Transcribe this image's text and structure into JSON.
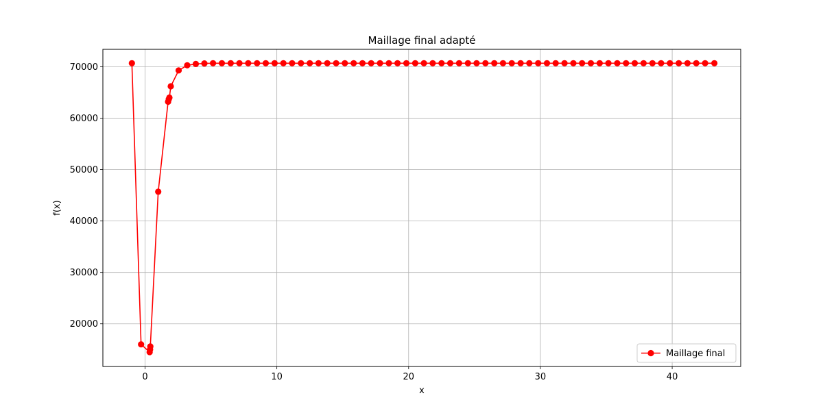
{
  "chart_data": {
    "type": "line",
    "title": "Maillage final adapté",
    "xlabel": "x",
    "ylabel": "f(x)",
    "xlim": [
      -3.2,
      45.2
    ],
    "ylim": [
      11700,
      73400
    ],
    "xticks": [
      0,
      10,
      20,
      30,
      40
    ],
    "yticks": [
      20000,
      30000,
      40000,
      50000,
      60000,
      70000
    ],
    "grid": true,
    "legend_position": "lower-right",
    "series": [
      {
        "name": "Maillage final",
        "color": "#ff0000",
        "marker": "circle",
        "points": [
          [
            -1.0,
            70700
          ],
          [
            -0.3,
            16000
          ],
          [
            0.35,
            14500
          ],
          [
            0.38,
            15000
          ],
          [
            0.4,
            15600
          ],
          [
            1.0,
            45700
          ],
          [
            1.75,
            63200
          ],
          [
            1.8,
            63700
          ],
          [
            1.85,
            64000
          ],
          [
            1.95,
            66200
          ],
          [
            2.55,
            69300
          ],
          [
            3.2,
            70300
          ],
          [
            3.85,
            70550
          ],
          [
            4.5,
            70650
          ],
          [
            5.16,
            70700
          ],
          [
            5.83,
            70700
          ],
          [
            6.5,
            70700
          ],
          [
            7.16,
            70700
          ],
          [
            7.83,
            70700
          ],
          [
            8.5,
            70700
          ],
          [
            9.16,
            70700
          ],
          [
            9.83,
            70700
          ],
          [
            10.5,
            70700
          ],
          [
            11.16,
            70700
          ],
          [
            11.83,
            70700
          ],
          [
            12.5,
            70700
          ],
          [
            13.16,
            70700
          ],
          [
            13.83,
            70700
          ],
          [
            14.5,
            70700
          ],
          [
            15.16,
            70700
          ],
          [
            15.83,
            70700
          ],
          [
            16.5,
            70700
          ],
          [
            17.16,
            70700
          ],
          [
            17.83,
            70700
          ],
          [
            18.5,
            70700
          ],
          [
            19.16,
            70700
          ],
          [
            19.83,
            70700
          ],
          [
            20.5,
            70700
          ],
          [
            21.16,
            70700
          ],
          [
            21.83,
            70700
          ],
          [
            22.5,
            70700
          ],
          [
            23.16,
            70700
          ],
          [
            23.83,
            70700
          ],
          [
            24.5,
            70700
          ],
          [
            25.16,
            70700
          ],
          [
            25.83,
            70700
          ],
          [
            26.5,
            70700
          ],
          [
            27.16,
            70700
          ],
          [
            27.83,
            70700
          ],
          [
            28.5,
            70700
          ],
          [
            29.16,
            70700
          ],
          [
            29.83,
            70700
          ],
          [
            30.5,
            70700
          ],
          [
            31.16,
            70700
          ],
          [
            31.83,
            70700
          ],
          [
            32.5,
            70700
          ],
          [
            33.16,
            70700
          ],
          [
            33.83,
            70700
          ],
          [
            34.5,
            70700
          ],
          [
            35.16,
            70700
          ],
          [
            35.83,
            70700
          ],
          [
            36.5,
            70700
          ],
          [
            37.16,
            70700
          ],
          [
            37.83,
            70700
          ],
          [
            38.5,
            70700
          ],
          [
            39.16,
            70700
          ],
          [
            39.83,
            70700
          ],
          [
            40.5,
            70700
          ],
          [
            41.16,
            70700
          ],
          [
            41.83,
            70700
          ],
          [
            42.5,
            70700
          ],
          [
            43.2,
            70700
          ]
        ]
      }
    ]
  }
}
